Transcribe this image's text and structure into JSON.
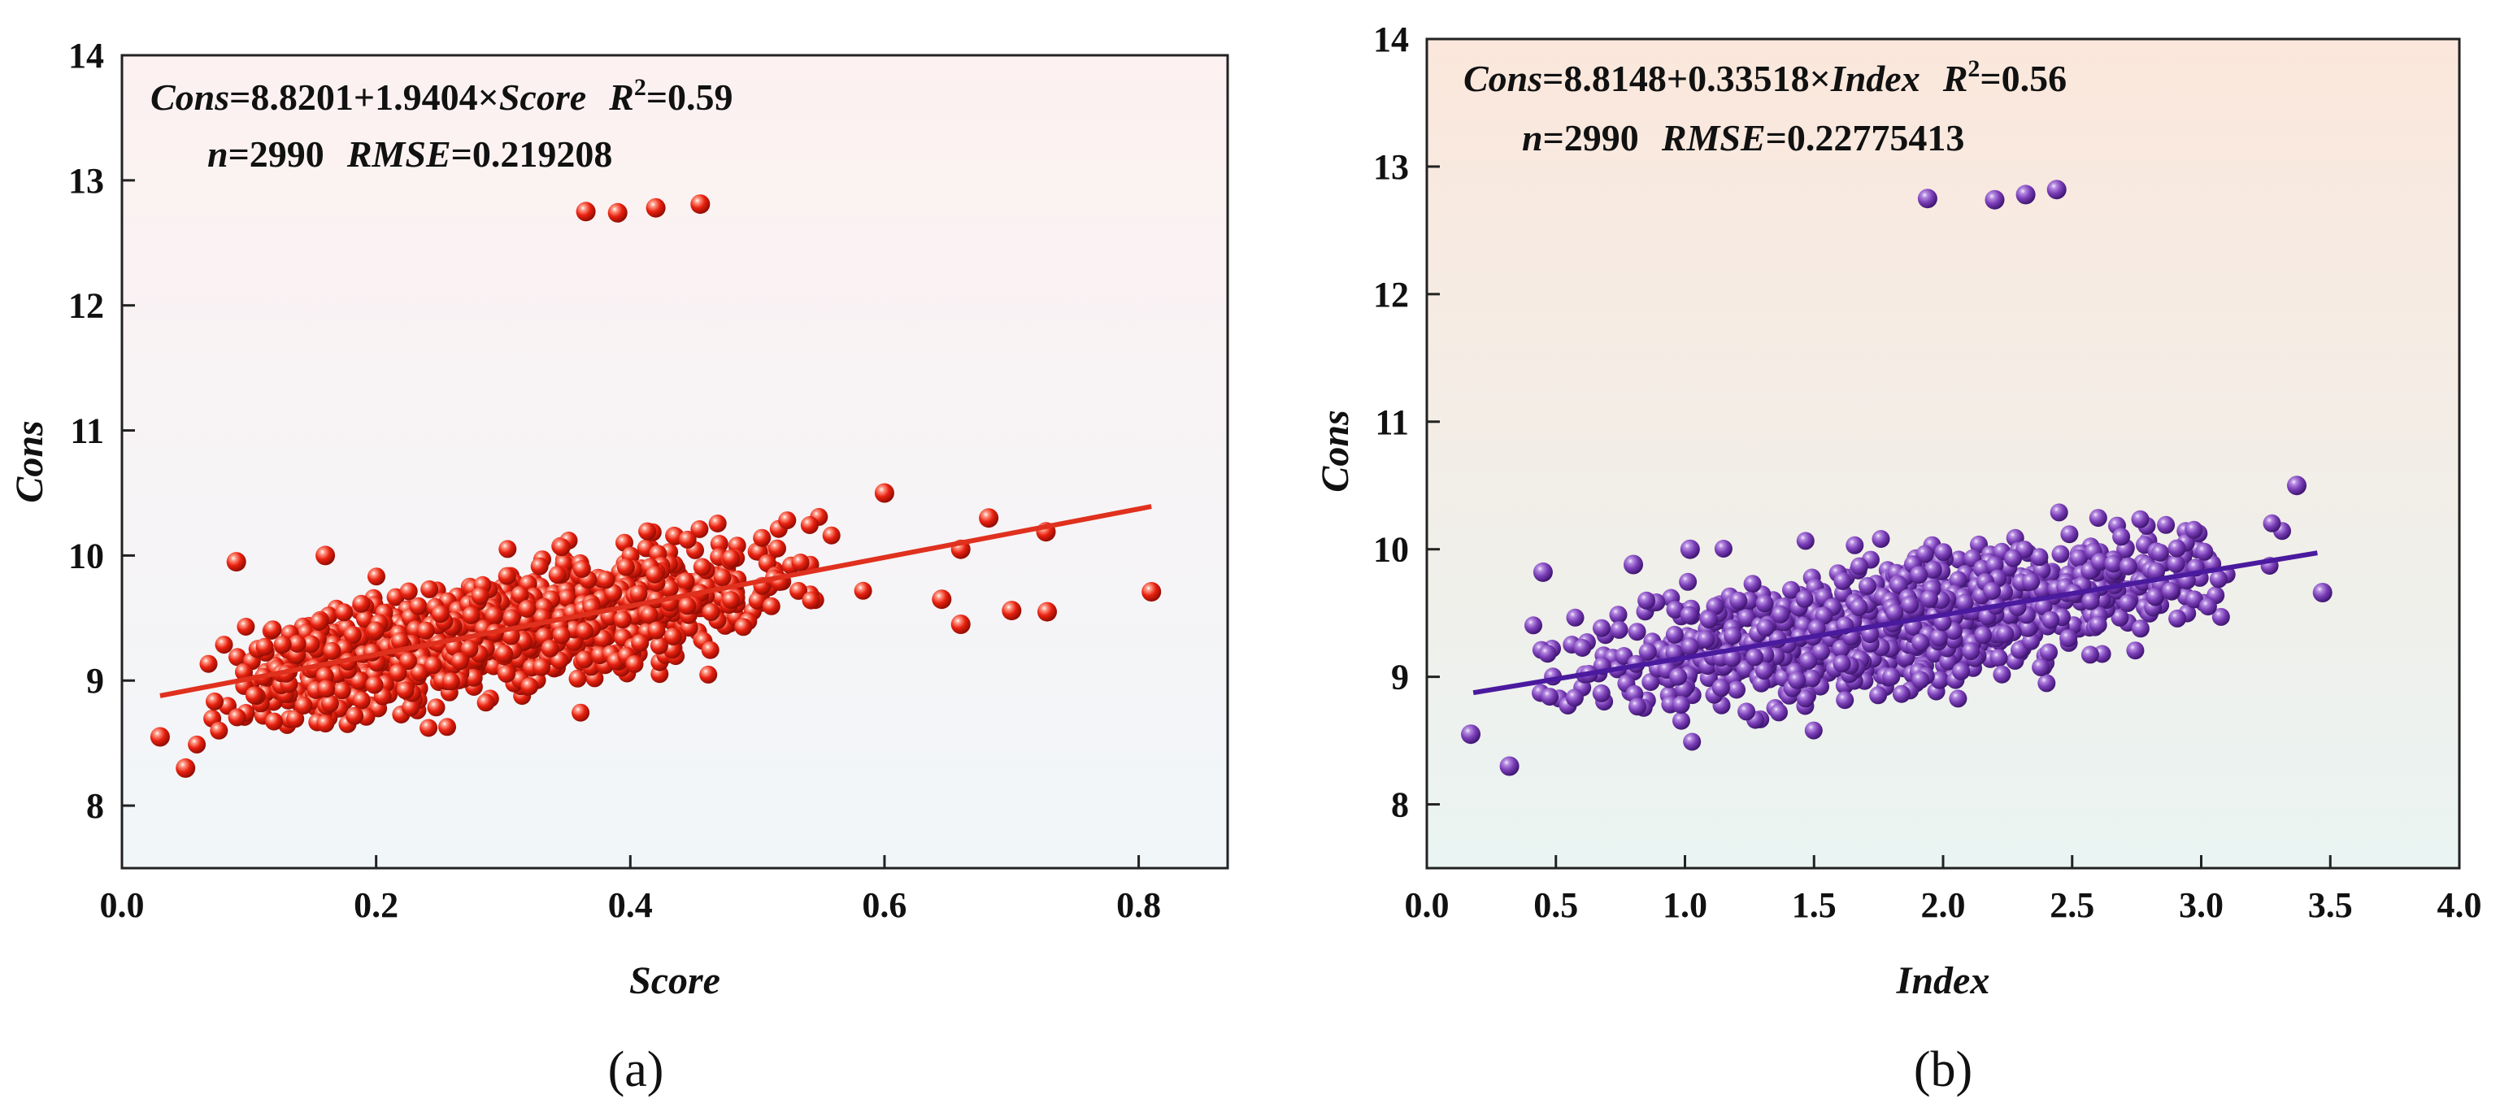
{
  "chart_data": [
    {
      "type": "scatter",
      "panel_label": "(a)",
      "xlabel": "Score",
      "ylabel": "Cons",
      "xlim": [
        0.0,
        0.87
      ],
      "ylim": [
        7.5,
        14
      ],
      "xticks": [
        "0.0",
        "0.2",
        "0.4",
        "0.6",
        "0.8"
      ],
      "yticks": [
        "8",
        "9",
        "10",
        "11",
        "12",
        "13",
        "14"
      ],
      "marker_color": "#e8200f",
      "line_color": "#e0301e",
      "background_gradient": [
        "#fdf1f1",
        "#f1f6f9"
      ],
      "equation": {
        "lhs": "Cons",
        "rhs_prefix": "=8.8201+1.9404×",
        "rhs_var": "Score",
        "r2_symbol": "R",
        "r2_exp": "2",
        "r2_value": "=0.59",
        "n_symbol": "n",
        "n_value": "=2990",
        "rmse_symbol": "RMSE",
        "rmse_value": "=0.219208"
      },
      "fit": {
        "intercept": 8.8201,
        "slope": 1.9404,
        "x_range": [
          0.03,
          0.81
        ]
      },
      "n": 2990,
      "rmse": 0.219208,
      "r2": 0.59,
      "x_spread": [
        0.03,
        0.62
      ],
      "outliers": [
        {
          "x": 0.365,
          "y": 12.75
        },
        {
          "x": 0.39,
          "y": 12.74
        },
        {
          "x": 0.42,
          "y": 12.78
        },
        {
          "x": 0.455,
          "y": 12.81
        },
        {
          "x": 0.81,
          "y": 9.71
        },
        {
          "x": 0.728,
          "y": 9.55
        },
        {
          "x": 0.7,
          "y": 9.56
        },
        {
          "x": 0.727,
          "y": 10.19
        },
        {
          "x": 0.682,
          "y": 10.3
        },
        {
          "x": 0.66,
          "y": 9.45
        },
        {
          "x": 0.645,
          "y": 9.65
        },
        {
          "x": 0.66,
          "y": 10.05
        },
        {
          "x": 0.6,
          "y": 10.5
        },
        {
          "x": 0.05,
          "y": 8.3
        },
        {
          "x": 0.03,
          "y": 8.55
        },
        {
          "x": 0.09,
          "y": 9.95
        },
        {
          "x": 0.16,
          "y": 10.0
        }
      ]
    },
    {
      "type": "scatter",
      "panel_label": "(b)",
      "xlabel": "Index",
      "ylabel": "Cons",
      "xlim": [
        0.0,
        4.0
      ],
      "ylim": [
        7.5,
        14
      ],
      "xticks": [
        "0.0",
        "0.5",
        "1.0",
        "1.5",
        "2.0",
        "2.5",
        "3.0",
        "3.5",
        "4.0"
      ],
      "yticks": [
        "8",
        "9",
        "10",
        "11",
        "12",
        "13",
        "14"
      ],
      "marker_color": "#7b3fb8",
      "line_color": "#4a1a9e",
      "background_gradient": [
        "#fbe7dc",
        "#eaf4f2"
      ],
      "equation": {
        "lhs": "Cons",
        "rhs_prefix": "=8.8148+0.33518×",
        "rhs_var": "Index",
        "r2_symbol": "R",
        "r2_exp": "2",
        "r2_value": "=0.56",
        "n_symbol": "n",
        "n_value": "=2990",
        "rmse_symbol": "RMSE",
        "rmse_value": "=0.22775413"
      },
      "fit": {
        "intercept": 8.8148,
        "slope": 0.33518,
        "x_range": [
          0.18,
          3.45
        ]
      },
      "n": 2990,
      "rmse": 0.22775413,
      "r2": 0.56,
      "x_spread": [
        0.18,
        3.45
      ],
      "outliers": [
        {
          "x": 1.94,
          "y": 12.75
        },
        {
          "x": 2.2,
          "y": 12.74
        },
        {
          "x": 2.32,
          "y": 12.78
        },
        {
          "x": 2.44,
          "y": 12.82
        },
        {
          "x": 3.47,
          "y": 9.66
        },
        {
          "x": 3.37,
          "y": 10.5
        },
        {
          "x": 0.32,
          "y": 8.3
        },
        {
          "x": 0.17,
          "y": 8.55
        },
        {
          "x": 1.02,
          "y": 10.0
        },
        {
          "x": 0.8,
          "y": 9.88
        },
        {
          "x": 0.45,
          "y": 9.82
        }
      ]
    }
  ]
}
